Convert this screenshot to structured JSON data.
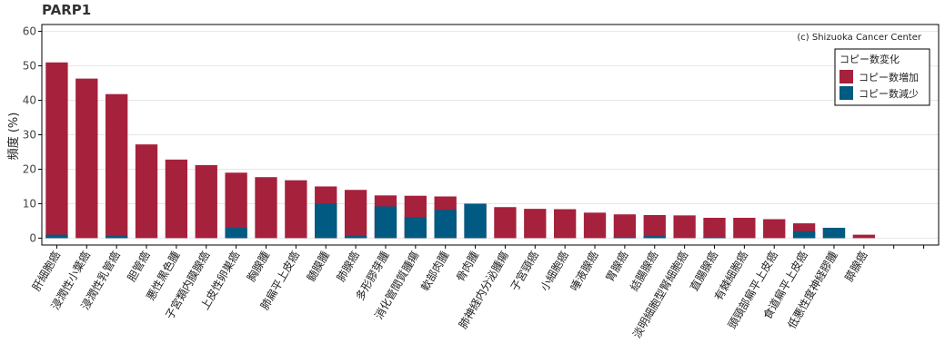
{
  "chart_data": {
    "type": "bar",
    "title": "PARP1",
    "ylabel": "頻度 (%)",
    "xlabel": "",
    "ylim": [
      -2,
      62
    ],
    "yticks": [
      0,
      10,
      20,
      30,
      40,
      50,
      60
    ],
    "grid": true,
    "copyright": "(c) Shizuoka Cancer Center",
    "legend": {
      "title": "コピー数変化",
      "position": "top-right"
    },
    "categories": [
      "肝細胞癌",
      "浸潤性小葉癌",
      "浸潤性乳管癌",
      "胆管癌",
      "悪性黒色腫",
      "子宮類内膜腺癌",
      "上皮性卵巣癌",
      "胸腺腫",
      "肺扁平上皮癌",
      "髄膜腫",
      "肺腺癌",
      "多形膠芽腫",
      "消化管間質腫瘍",
      "軟部肉腫",
      "骨肉腫",
      "肺神経内分泌腫瘍",
      "子宮頸癌",
      "小細胞癌",
      "唾液腺癌",
      "胃腺癌",
      "結腸腺癌",
      "淡明細胞型腎細胞癌",
      "直腸腺癌",
      "有棘細胞癌",
      "頭頸部扁平上皮癌",
      "食道扁平上皮癌",
      "低悪性度神経膠腫",
      "膵腺癌",
      "",
      ""
    ],
    "series": [
      {
        "name": "コピー数増加",
        "color": "#a6213c",
        "values": [
          51,
          46.3,
          41.8,
          27.2,
          22.8,
          21.2,
          19,
          17.7,
          16.8,
          15,
          14,
          12.4,
          12.3,
          12.1,
          0,
          9,
          8.5,
          8.4,
          7.4,
          6.9,
          6.7,
          6.6,
          5.9,
          5.9,
          5.5,
          4.3,
          0,
          1,
          0,
          0
        ]
      },
      {
        "name": "コピー数減少",
        "color": "#005a82",
        "values": [
          1,
          0,
          0.6,
          0,
          0,
          0,
          3,
          0,
          0,
          10,
          0.6,
          9.2,
          6.1,
          8.2,
          10,
          0,
          0,
          0,
          0,
          0.3,
          0.6,
          0,
          0.3,
          0,
          0,
          2,
          3,
          0,
          0,
          0
        ]
      }
    ]
  }
}
